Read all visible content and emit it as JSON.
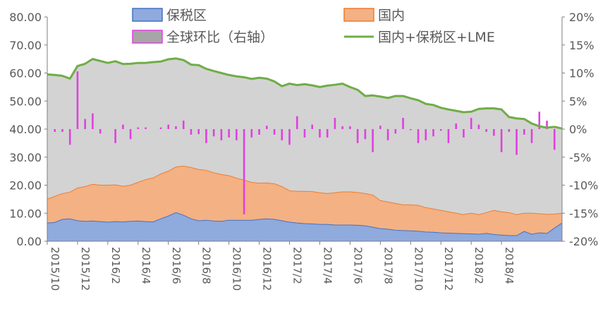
{
  "chart_data": {
    "type": "area",
    "x_tick_labels": [
      "2015/10",
      "2015/12",
      "2016/2",
      "2016/4",
      "2016/6",
      "2016/8",
      "2016/10",
      "2016/12",
      "2017/2",
      "2017/4",
      "2017/6",
      "2017/8",
      "2017/10",
      "2017/12",
      "2018/2",
      "2018/4"
    ],
    "y_left": {
      "ylim": [
        0,
        80
      ],
      "ticks": [
        "0.00",
        "10.00",
        "20.00",
        "30.00",
        "40.00",
        "50.00",
        "60.00",
        "70.00",
        "80.00"
      ]
    },
    "y_right": {
      "ylim": [
        -20,
        20
      ],
      "ticks": [
        "-20%",
        "-15%",
        "-10%",
        "-5%",
        "0%",
        "5%",
        "10%",
        "15%",
        "20%"
      ]
    },
    "grid": false,
    "legend": {
      "position": "top",
      "items": [
        {
          "label": "保税区",
          "kind": "area",
          "color": "#8FAADC",
          "border": "#4472C4"
        },
        {
          "label": "国内",
          "kind": "area",
          "color": "#F4B183",
          "border": "#ED7D31"
        },
        {
          "label": "全球环比（右轴）",
          "kind": "bars",
          "color": "#A6A6A6",
          "border": "#E040E0"
        },
        {
          "label": "国内+保税区+LME",
          "kind": "line",
          "color": "#70AD47"
        }
      ]
    },
    "series": [
      {
        "name": "保税区",
        "axis": "left",
        "values": [
          6.5,
          6.7,
          7.8,
          8.0,
          7.3,
          7.1,
          7.2,
          7.0,
          6.8,
          7.0,
          6.9,
          7.1,
          7.2,
          7.0,
          6.9,
          8.0,
          9.0,
          10.2,
          9.3,
          8.0,
          7.3,
          7.5,
          7.2,
          7.1,
          7.5,
          7.5,
          7.5,
          7.5,
          7.8,
          8.0,
          7.8,
          7.3,
          6.8,
          6.5,
          6.3,
          6.2,
          6.0,
          6.0,
          5.8,
          5.8,
          5.8,
          5.7,
          5.5,
          5.0,
          4.5,
          4.3,
          3.9,
          3.8,
          3.7,
          3.6,
          3.3,
          3.2,
          3.0,
          2.9,
          2.8,
          2.7,
          2.6,
          2.5,
          2.8,
          2.4,
          2.2,
          2.0,
          2.0,
          3.5,
          2.5,
          3.0,
          2.8,
          4.7,
          6.5
        ]
      },
      {
        "name": "国内",
        "axis": "left",
        "values": [
          15.0,
          16.0,
          17.0,
          17.5,
          19.0,
          19.5,
          20.3,
          20.0,
          20.0,
          20.1,
          19.6,
          20.0,
          21.0,
          22.0,
          22.6,
          24.0,
          25.0,
          26.5,
          26.8,
          26.3,
          25.6,
          25.3,
          24.4,
          23.8,
          23.4,
          22.5,
          21.8,
          21.0,
          20.7,
          20.8,
          20.5,
          19.5,
          18.0,
          17.8,
          17.8,
          17.7,
          17.3,
          17.0,
          17.3,
          17.6,
          17.6,
          17.4,
          17.0,
          16.5,
          14.5,
          14.0,
          13.5,
          13.0,
          13.0,
          12.8,
          12.0,
          11.5,
          11.0,
          10.5,
          10.0,
          9.5,
          10.0,
          9.5,
          10.2,
          11.0,
          10.5,
          10.2,
          9.5,
          10.0,
          10.0,
          9.8,
          9.6,
          9.7,
          10.0
        ]
      },
      {
        "name": "国内+保税区+LME",
        "axis": "left",
        "type": "line",
        "values": [
          59.5,
          59.3,
          59.0,
          58.0,
          62.5,
          63.3,
          65.0,
          64.3,
          63.6,
          64.2,
          63.2,
          63.3,
          63.6,
          63.6,
          63.9,
          64.1,
          64.9,
          65.2,
          64.6,
          63.0,
          62.8,
          61.5,
          60.7,
          60.0,
          59.3,
          58.8,
          58.5,
          57.9,
          58.3,
          58.0,
          57.0,
          55.3,
          56.2,
          55.7,
          56.0,
          55.6,
          55.0,
          55.5,
          55.8,
          56.2,
          55.0,
          54.0,
          51.8,
          52.0,
          51.6,
          51.1,
          51.8,
          51.8,
          51.0,
          50.3,
          49.0,
          48.6,
          47.6,
          47.0,
          46.5,
          46.0,
          46.2,
          47.2,
          47.4,
          47.4,
          47.0,
          44.3,
          43.8,
          43.6,
          42.0,
          41.0,
          40.5,
          40.8,
          40.2
        ]
      },
      {
        "name": "全球环比（右轴）",
        "axis": "right",
        "type": "bar",
        "values": [
          0.0,
          -0.5,
          -0.5,
          -2.8,
          10.3,
          1.8,
          2.8,
          -0.8,
          0.0,
          -2.5,
          0.8,
          -1.8,
          0.3,
          0.3,
          0.0,
          0.3,
          0.8,
          0.5,
          1.5,
          -1.0,
          -0.9,
          -2.5,
          -1.3,
          -2.0,
          -1.5,
          -2.0,
          -15.2,
          -1.5,
          -1.0,
          0.6,
          -1.0,
          -2.0,
          -2.8,
          2.3,
          -1.5,
          0.8,
          -1.5,
          -1.5,
          2.0,
          0.5,
          0.5,
          -2.5,
          -1.8,
          -4.1,
          0.6,
          -2.0,
          -0.8,
          2.0,
          -0.2,
          -2.5,
          -2.0,
          -1.3,
          -0.3,
          -2.5,
          1.0,
          -1.5,
          2.0,
          0.8,
          -0.5,
          -1.2,
          -4.1,
          -0.5,
          -4.6,
          -1.0,
          -2.5,
          3.1,
          1.5,
          -3.7,
          0.0
        ]
      }
    ]
  },
  "style": {
    "background": "#ffffff",
    "gray_fill": "#D3D3D3",
    "gray_border": "#A6A6A6",
    "blue_fill": "#8FAADC",
    "blue_border": "#4472C4",
    "orange_fill": "#F4B183",
    "orange_border": "#ED7D31",
    "green_line": "#70AD47",
    "magenta_bar": "#E040E0",
    "axis_color": "#7F7F7F",
    "text_color": "#595959"
  }
}
